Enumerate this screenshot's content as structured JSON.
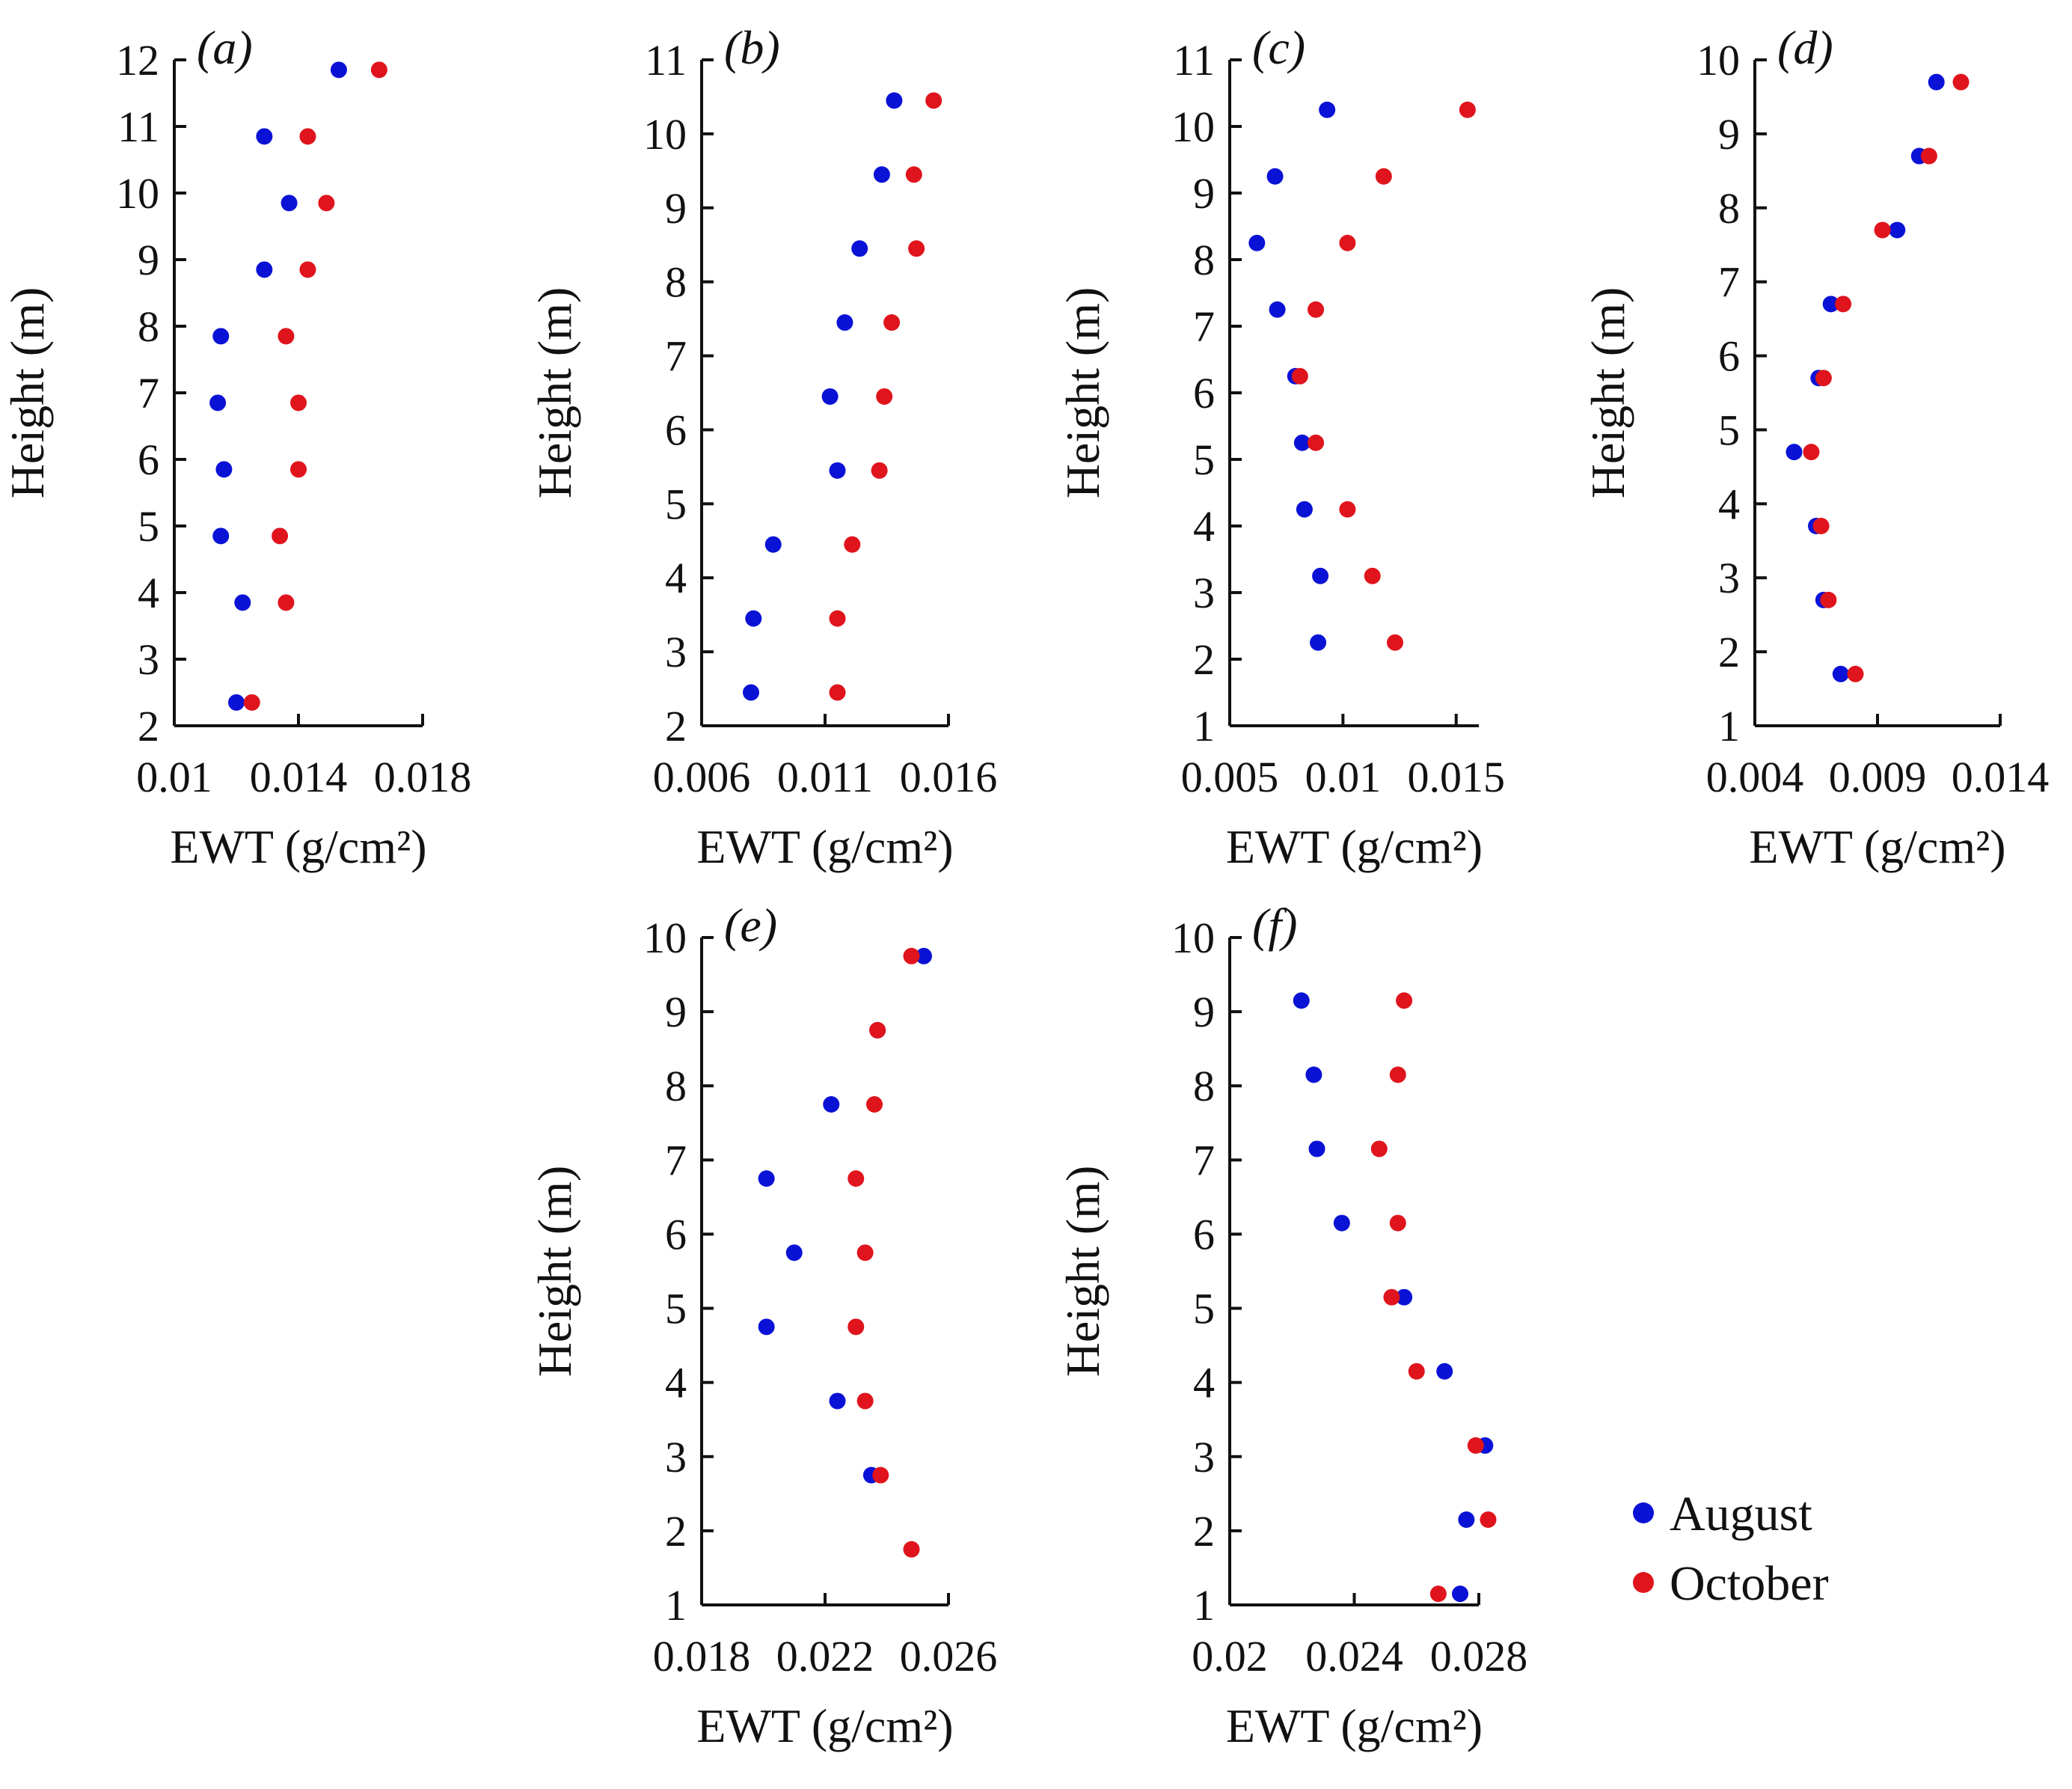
{
  "legend": {
    "items": [
      {
        "label": "August",
        "color": "#0a12d6"
      },
      {
        "label": "October",
        "color": "#e0141c"
      }
    ]
  },
  "chart_data": [
    {
      "type": "scatter",
      "panel_label": "(a)",
      "xlabel": "EWT (g/cm²)",
      "ylabel": "Height (m)",
      "xlim": [
        0.01,
        0.018
      ],
      "ylim": [
        2,
        12
      ],
      "xticks": [
        0.01,
        0.014,
        0.018
      ],
      "xtick_labels": [
        "0.01",
        "0.014",
        "0.018"
      ],
      "yticks": [
        2,
        3,
        4,
        5,
        6,
        7,
        8,
        9,
        10,
        11,
        12
      ],
      "series": [
        {
          "name": "August",
          "color": "#0a12d6",
          "points": [
            [
              0.0153,
              11.85
            ],
            [
              0.0129,
              10.85
            ],
            [
              0.0137,
              9.85
            ],
            [
              0.0129,
              8.85
            ],
            [
              0.0115,
              7.85
            ],
            [
              0.0114,
              6.85
            ],
            [
              0.0116,
              5.85
            ],
            [
              0.0115,
              4.85
            ],
            [
              0.0122,
              3.85
            ],
            [
              0.012,
              2.35
            ]
          ]
        },
        {
          "name": "October",
          "color": "#e0141c",
          "points": [
            [
              0.0166,
              11.85
            ],
            [
              0.0143,
              10.85
            ],
            [
              0.0149,
              9.85
            ],
            [
              0.0143,
              8.85
            ],
            [
              0.0136,
              7.85
            ],
            [
              0.014,
              6.85
            ],
            [
              0.014,
              5.85
            ],
            [
              0.0134,
              4.85
            ],
            [
              0.0136,
              3.85
            ],
            [
              0.0125,
              2.35
            ]
          ]
        }
      ]
    },
    {
      "type": "scatter",
      "panel_label": "(b)",
      "xlabel": "EWT (g/cm²)",
      "ylabel": "Height (m)",
      "xlim": [
        0.006,
        0.016
      ],
      "ylim": [
        2,
        11
      ],
      "xticks": [
        0.006,
        0.011,
        0.016
      ],
      "xtick_labels": [
        "0.006",
        "0.011",
        "0.016"
      ],
      "yticks": [
        2,
        3,
        4,
        5,
        6,
        7,
        8,
        9,
        10,
        11
      ],
      "series": [
        {
          "name": "August",
          "color": "#0a12d6",
          "points": [
            [
              0.0138,
              10.45
            ],
            [
              0.0133,
              9.45
            ],
            [
              0.0124,
              8.45
            ],
            [
              0.0118,
              7.45
            ],
            [
              0.0112,
              6.45
            ],
            [
              0.0115,
              5.45
            ],
            [
              0.0089,
              4.45
            ],
            [
              0.0081,
              3.45
            ],
            [
              0.008,
              2.45
            ]
          ]
        },
        {
          "name": "October",
          "color": "#e0141c",
          "points": [
            [
              0.0154,
              10.45
            ],
            [
              0.0146,
              9.45
            ],
            [
              0.0147,
              8.45
            ],
            [
              0.0137,
              7.45
            ],
            [
              0.0134,
              6.45
            ],
            [
              0.0132,
              5.45
            ],
            [
              0.0121,
              4.45
            ],
            [
              0.0115,
              3.45
            ],
            [
              0.0115,
              2.45
            ]
          ]
        }
      ]
    },
    {
      "type": "scatter",
      "panel_label": "(c)",
      "xlabel": "EWT (g/cm²)",
      "ylabel": "Height (m)",
      "xlim": [
        0.005,
        0.016
      ],
      "ylim": [
        1,
        11
      ],
      "xticks": [
        0.005,
        0.01,
        0.015
      ],
      "xtick_labels": [
        "0.005",
        "0.01",
        "0.015"
      ],
      "yticks": [
        1,
        2,
        3,
        4,
        5,
        6,
        7,
        8,
        9,
        10,
        11
      ],
      "series": [
        {
          "name": "August",
          "color": "#0a12d6",
          "points": [
            [
              0.0093,
              10.25
            ],
            [
              0.007,
              9.25
            ],
            [
              0.0062,
              8.25
            ],
            [
              0.0071,
              7.25
            ],
            [
              0.0079,
              6.25
            ],
            [
              0.0082,
              5.25
            ],
            [
              0.0083,
              4.25
            ],
            [
              0.009,
              3.25
            ],
            [
              0.0089,
              2.25
            ]
          ]
        },
        {
          "name": "October",
          "color": "#e0141c",
          "points": [
            [
              0.0155,
              10.25
            ],
            [
              0.0118,
              9.25
            ],
            [
              0.0102,
              8.25
            ],
            [
              0.0088,
              7.25
            ],
            [
              0.0081,
              6.25
            ],
            [
              0.0088,
              5.25
            ],
            [
              0.0102,
              4.25
            ],
            [
              0.0113,
              3.25
            ],
            [
              0.0123,
              2.25
            ]
          ]
        }
      ]
    },
    {
      "type": "scatter",
      "panel_label": "(d)",
      "xlabel": "EWT (g/cm²)",
      "ylabel": "Height (m)",
      "xlim": [
        0.004,
        0.014
      ],
      "ylim": [
        1,
        10
      ],
      "xticks": [
        0.004,
        0.009,
        0.014
      ],
      "xtick_labels": [
        "0.004",
        "0.009",
        "0.014"
      ],
      "yticks": [
        1,
        2,
        3,
        4,
        5,
        6,
        7,
        8,
        9,
        10
      ],
      "series": [
        {
          "name": "August",
          "color": "#0a12d6",
          "points": [
            [
              0.0114,
              9.7
            ],
            [
              0.0107,
              8.7
            ],
            [
              0.0098,
              7.7
            ],
            [
              0.0071,
              6.7
            ],
            [
              0.0066,
              5.7
            ],
            [
              0.0056,
              4.7
            ],
            [
              0.0065,
              3.7
            ],
            [
              0.0068,
              2.7
            ],
            [
              0.0075,
              1.7
            ]
          ]
        },
        {
          "name": "October",
          "color": "#e0141c",
          "points": [
            [
              0.0124,
              9.7
            ],
            [
              0.0111,
              8.7
            ],
            [
              0.0092,
              7.7
            ],
            [
              0.0076,
              6.7
            ],
            [
              0.0068,
              5.7
            ],
            [
              0.0063,
              4.7
            ],
            [
              0.0067,
              3.7
            ],
            [
              0.007,
              2.7
            ],
            [
              0.0081,
              1.7
            ]
          ]
        }
      ]
    },
    {
      "type": "scatter",
      "panel_label": "(e)",
      "xlabel": "EWT (g/cm²)",
      "ylabel": "Height (m)",
      "xlim": [
        0.018,
        0.026
      ],
      "ylim": [
        1,
        10
      ],
      "xticks": [
        0.018,
        0.022,
        0.026
      ],
      "xtick_labels": [
        "0.018",
        "0.022",
        "0.026"
      ],
      "yticks": [
        1,
        2,
        3,
        4,
        5,
        6,
        7,
        8,
        9,
        10
      ],
      "series": [
        {
          "name": "August",
          "color": "#0a12d6",
          "points": [
            [
              0.0252,
              9.75
            ],
            [
              0.0237,
              8.75
            ],
            [
              0.0222,
              7.75
            ],
            [
              0.0201,
              6.75
            ],
            [
              0.021,
              5.75
            ],
            [
              0.0201,
              4.75
            ],
            [
              0.0224,
              3.75
            ],
            [
              0.0235,
              2.75
            ]
          ]
        },
        {
          "name": "October",
          "color": "#e0141c",
          "points": [
            [
              0.0248,
              9.75
            ],
            [
              0.0237,
              8.75
            ],
            [
              0.0236,
              7.75
            ],
            [
              0.023,
              6.75
            ],
            [
              0.0233,
              5.75
            ],
            [
              0.023,
              4.75
            ],
            [
              0.0233,
              3.75
            ],
            [
              0.0238,
              2.75
            ],
            [
              0.0248,
              1.75
            ]
          ]
        }
      ]
    },
    {
      "type": "scatter",
      "panel_label": "(f)",
      "xlabel": "EWT (g/cm²)",
      "ylabel": "Height (m)",
      "xlim": [
        0.02,
        0.028
      ],
      "ylim": [
        1,
        10
      ],
      "xticks": [
        0.02,
        0.024,
        0.028
      ],
      "xtick_labels": [
        "0.02",
        "0.024",
        "0.028"
      ],
      "yticks": [
        1,
        2,
        3,
        4,
        5,
        6,
        7,
        8,
        9,
        10
      ],
      "series": [
        {
          "name": "August",
          "color": "#0a12d6",
          "points": [
            [
              0.0223,
              9.15
            ],
            [
              0.0227,
              8.15
            ],
            [
              0.0228,
              7.15
            ],
            [
              0.0236,
              6.15
            ],
            [
              0.0256,
              5.15
            ],
            [
              0.0269,
              4.15
            ],
            [
              0.0282,
              3.15
            ],
            [
              0.0276,
              2.15
            ],
            [
              0.0274,
              1.15
            ]
          ]
        },
        {
          "name": "October",
          "color": "#e0141c",
          "points": [
            [
              0.0256,
              9.15
            ],
            [
              0.0254,
              8.15
            ],
            [
              0.0248,
              7.15
            ],
            [
              0.0254,
              6.15
            ],
            [
              0.0252,
              5.15
            ],
            [
              0.026,
              4.15
            ],
            [
              0.0279,
              3.15
            ],
            [
              0.0283,
              2.15
            ],
            [
              0.0267,
              1.15
            ]
          ]
        }
      ]
    }
  ]
}
